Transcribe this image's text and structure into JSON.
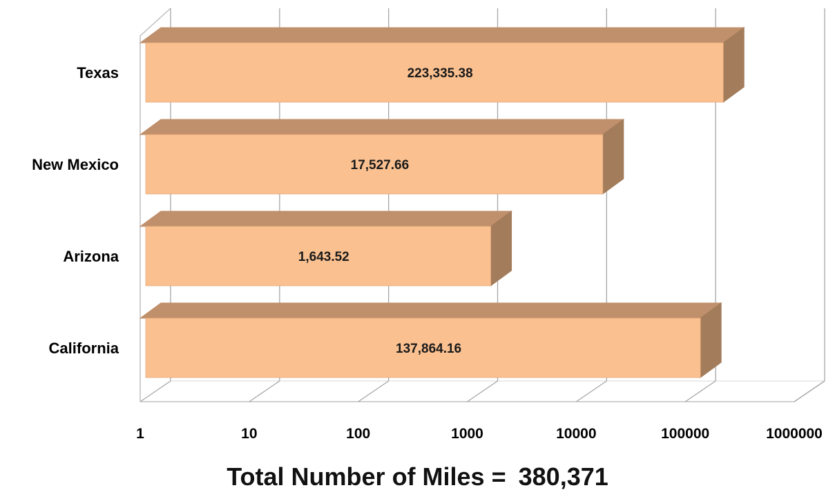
{
  "chart_data": {
    "type": "bar",
    "orientation": "horizontal",
    "style": "3d",
    "x_scale": "log",
    "xlim": [
      1,
      1000000
    ],
    "x_ticks": [
      "1",
      "10",
      "100",
      "1000",
      "10000",
      "100000",
      "1000000"
    ],
    "categories": [
      "Texas",
      "New Mexico",
      "Arizona",
      "California"
    ],
    "values": [
      223335.38,
      17527.66,
      1643.52,
      137864.16
    ],
    "data_labels": [
      "223,335.38",
      "17,527.66",
      "1,643.52",
      "137,864.16"
    ],
    "bar_color": "#FAC090",
    "bar_top_color": "#C0906C",
    "bar_side_color": "#A27C5B",
    "grid": true
  },
  "total": {
    "label": "Total Number of Miles =",
    "value": "380,371"
  }
}
